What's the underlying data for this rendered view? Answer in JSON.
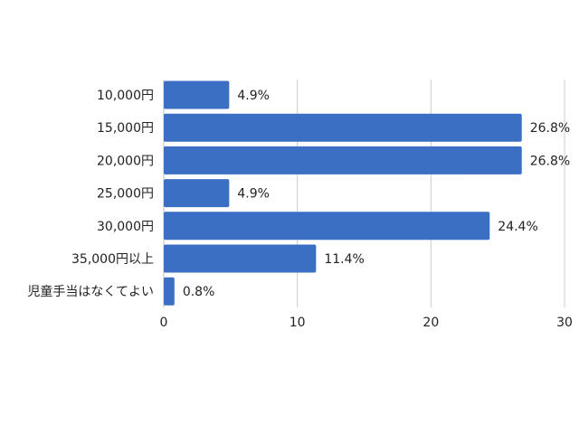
{
  "chart_data": {
    "type": "bar",
    "orientation": "horizontal",
    "categories": [
      "10,000円",
      "15,000円",
      "20,000円",
      "25,000円",
      "30,000円",
      "35,000円以上",
      "児童手当はなくてよい"
    ],
    "values": [
      4.9,
      26.8,
      26.8,
      4.9,
      24.4,
      11.4,
      0.8
    ],
    "value_labels": [
      "4.9%",
      "26.8%",
      "26.8%",
      "4.9%",
      "24.4%",
      "11.4%",
      "0.8%"
    ],
    "xlim": [
      0,
      30
    ],
    "x_ticks": [
      "0",
      "10",
      "20",
      "30"
    ],
    "grid": "vertical",
    "bar_color": "#3a6fc4",
    "title": "",
    "xlabel": "",
    "ylabel": ""
  }
}
